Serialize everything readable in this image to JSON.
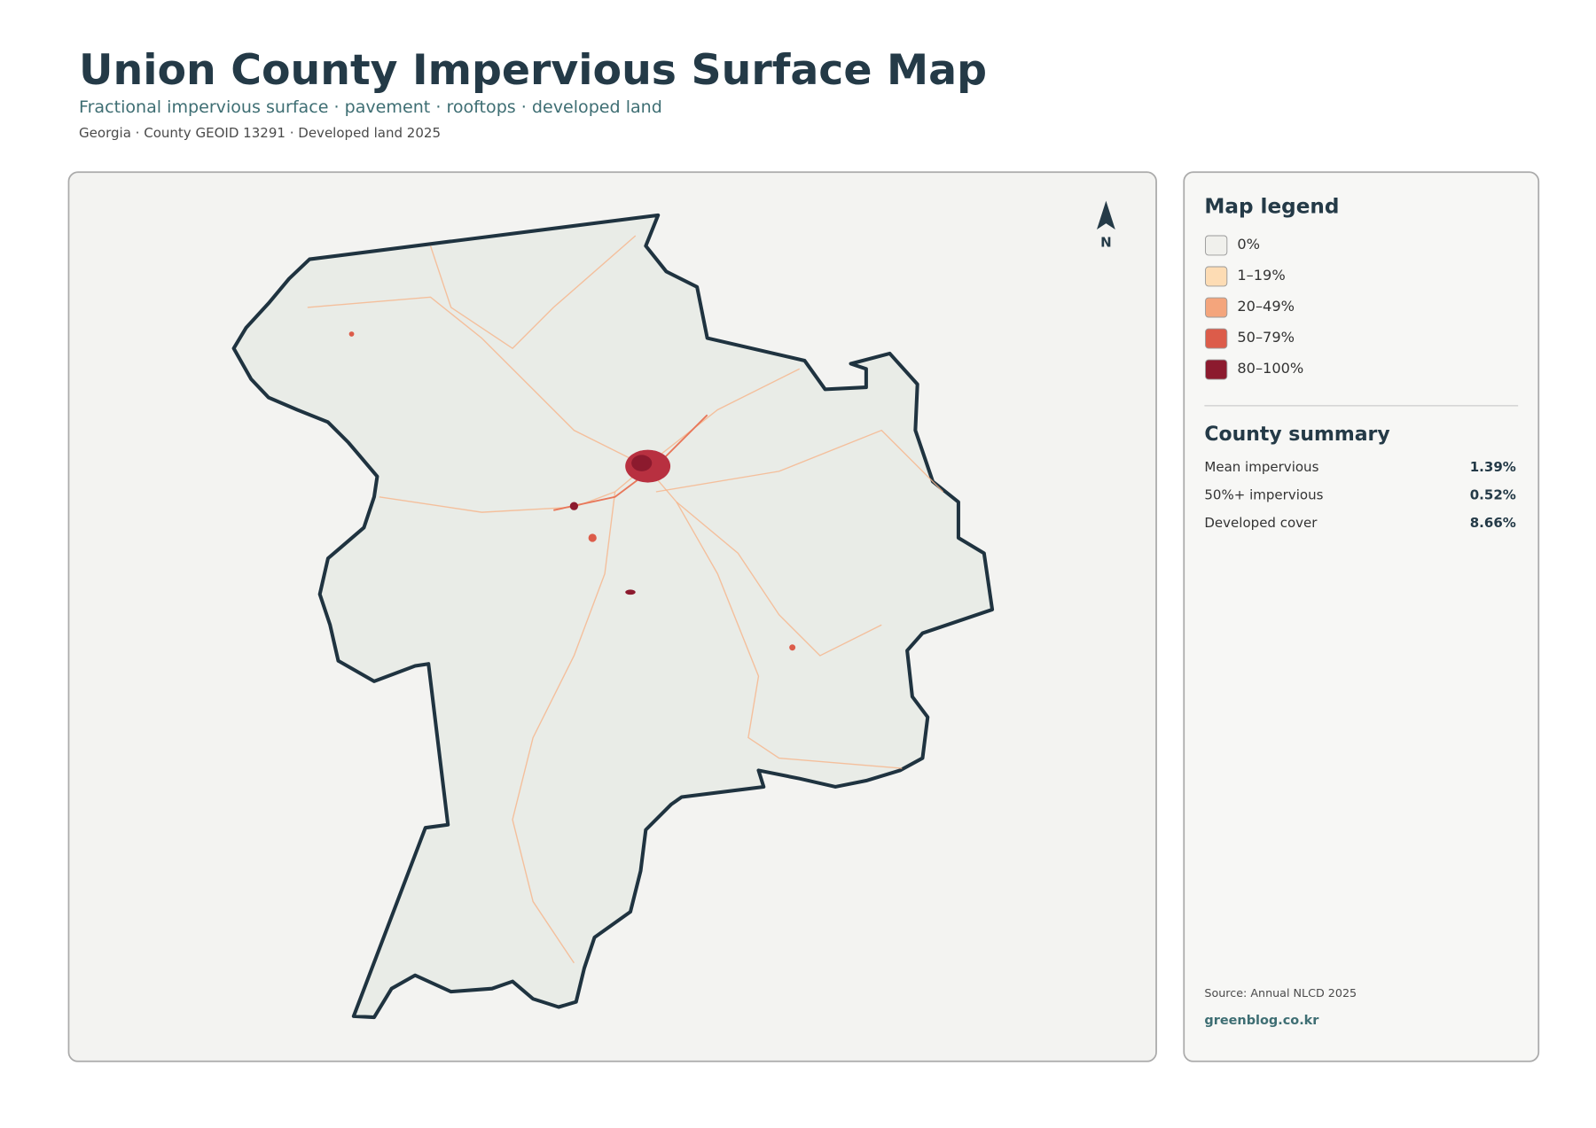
{
  "header": {
    "title": "Union County Impervious Surface Map",
    "subtitle": "Fractional impervious surface · pavement · rooftops · developed land",
    "meta": "Georgia · County GEOID 13291 · Developed land 2025"
  },
  "map": {
    "north_label": "N"
  },
  "legend": {
    "title": "Map legend",
    "items": [
      {
        "label": "0%",
        "color": "#f0f0ec"
      },
      {
        "label": "1–19%",
        "color": "#fddcb4"
      },
      {
        "label": "20–49%",
        "color": "#f4a57c"
      },
      {
        "label": "50–79%",
        "color": "#dc5c4a"
      },
      {
        "label": "80–100%",
        "color": "#8c1a2e"
      }
    ]
  },
  "summary": {
    "title": "County summary",
    "rows": [
      {
        "label": "Mean impervious",
        "value": "1.39%"
      },
      {
        "label": "50%+ impervious",
        "value": "0.52%"
      },
      {
        "label": "Developed cover",
        "value": "8.66%"
      }
    ]
  },
  "footer": {
    "source": "Source: Annual NLCD 2025",
    "site": "greenblog.co.kr"
  }
}
